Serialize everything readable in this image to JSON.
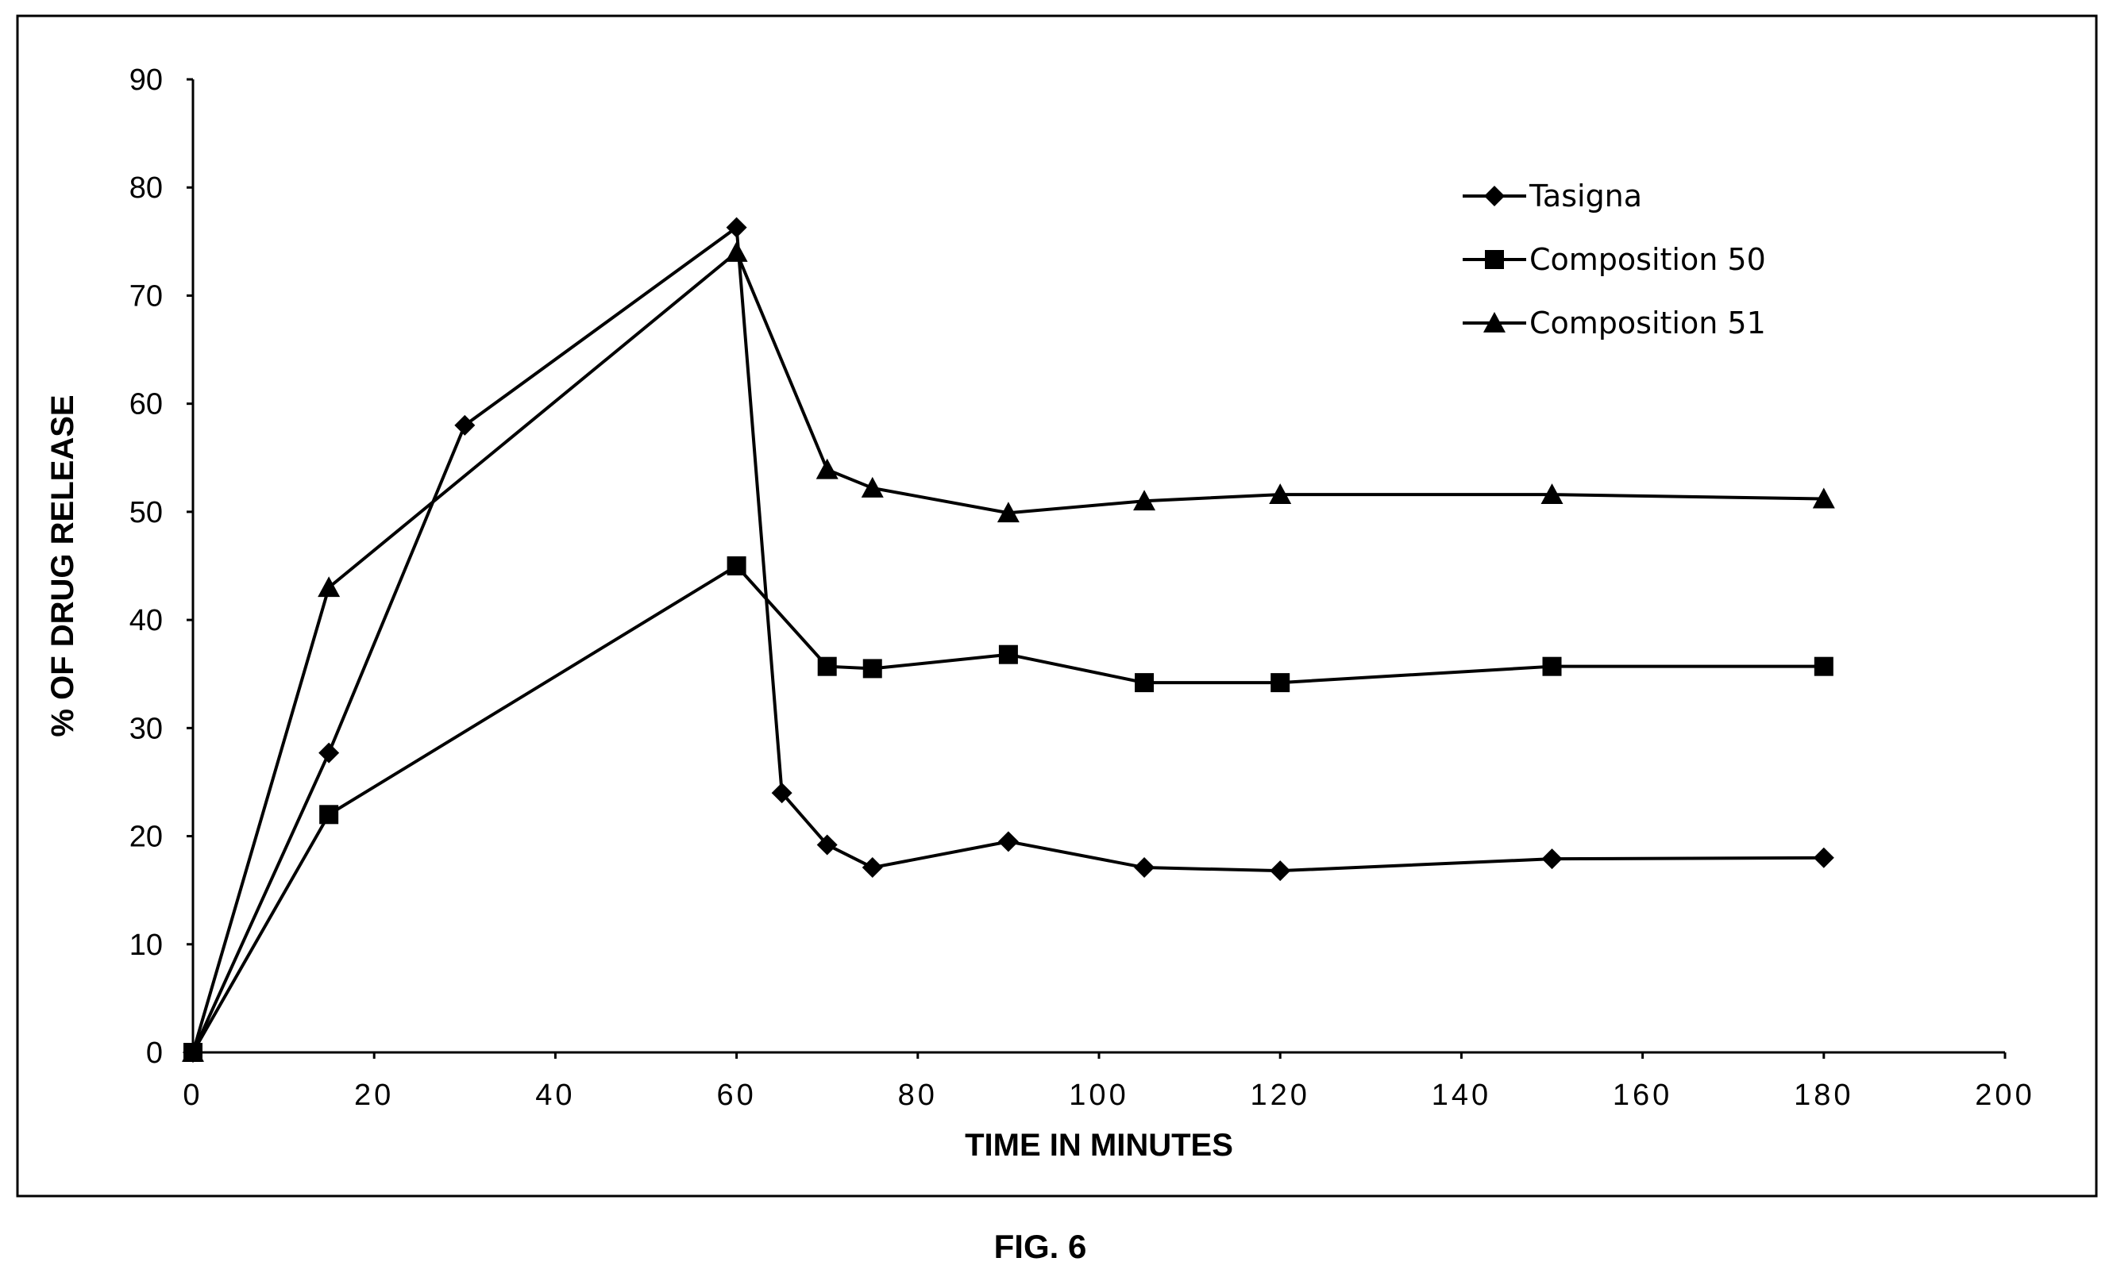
{
  "figure_label": "FIG. 6",
  "chart_data": {
    "type": "line",
    "title": "",
    "xlabel": "TIME IN MINUTES",
    "ylabel": "% OF DRUG RELEASE",
    "xlim": [
      0,
      200
    ],
    "ylim": [
      0,
      90
    ],
    "xticks": [
      0,
      20,
      40,
      60,
      80,
      100,
      120,
      140,
      160,
      180,
      200
    ],
    "yticks": [
      0,
      10,
      20,
      30,
      40,
      50,
      60,
      70,
      80,
      90
    ],
    "grid": false,
    "legend_position": "top-right",
    "series": [
      {
        "name": "Tasigna",
        "marker": "diamond",
        "x": [
          0,
          15,
          30,
          60,
          65,
          70,
          75,
          90,
          105,
          120,
          150,
          180
        ],
        "y": [
          0,
          27.7,
          58,
          76.3,
          24,
          19.2,
          17.1,
          19.5,
          17.1,
          16.8,
          17.9,
          18.0
        ]
      },
      {
        "name": "Composition 50",
        "marker": "square",
        "x": [
          0,
          15,
          60,
          70,
          75,
          90,
          105,
          120,
          150,
          180
        ],
        "y": [
          0,
          22.0,
          45.0,
          35.7,
          35.5,
          36.8,
          34.2,
          34.2,
          35.7,
          35.7
        ]
      },
      {
        "name": "Composition 51",
        "marker": "triangle",
        "x": [
          0,
          15,
          60,
          70,
          75,
          90,
          105,
          120,
          150,
          180
        ],
        "y": [
          0,
          43.0,
          74.0,
          53.9,
          52.2,
          49.9,
          51.0,
          51.6,
          51.6,
          51.2
        ]
      }
    ]
  }
}
